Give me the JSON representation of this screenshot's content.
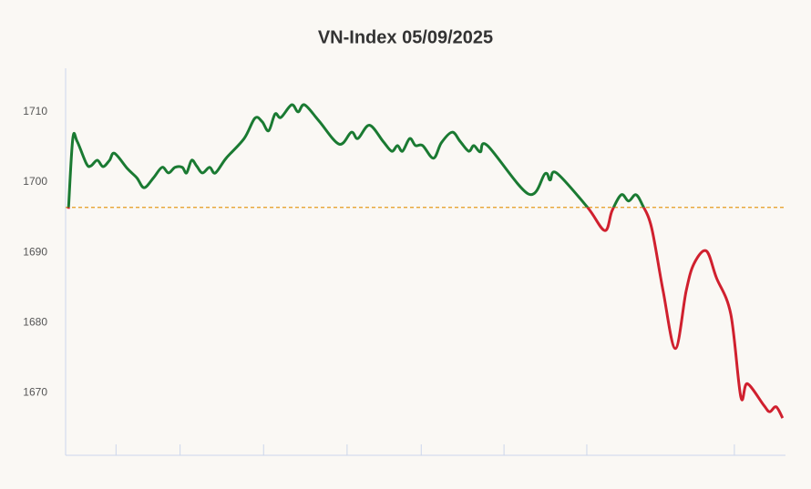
{
  "chart_data": {
    "type": "line",
    "title": "VN-Index 05/09/2025",
    "x": [
      0.4,
      1.0,
      1.6,
      2.9,
      3.5,
      4.4,
      5.2,
      6.1,
      6.8,
      8.6,
      9.9,
      10.9,
      12.2,
      13.4,
      14.3,
      15.2,
      16.2,
      16.8,
      17.5,
      18.2,
      19.0,
      20.0,
      20.8,
      22.3,
      24.8,
      26.3,
      27.3,
      28.2,
      29.1,
      29.9,
      31.4,
      32.3,
      33.2,
      35.2,
      38.0,
      39.7,
      40.6,
      42.2,
      44.1,
      45.3,
      46.1,
      46.8,
      47.8,
      48.6,
      49.6,
      51.1,
      52.2,
      53.7,
      54.8,
      56.0,
      56.7,
      57.6,
      58.6,
      64.3,
      66.6,
      67.3,
      68.2,
      72.5,
      74.9,
      75.9,
      77.2,
      78.2,
      79.2,
      80.1,
      81.4,
      83.0,
      84.7,
      86.2,
      87.3,
      89.0,
      90.4,
      92.4,
      93.8,
      94.7,
      97.0,
      97.8,
      98.7,
      99.6
    ],
    "values": [
      1696.2,
      1706.2,
      1705.8,
      1702.6,
      1702.3,
      1703.1,
      1702.2,
      1703.1,
      1704.1,
      1701.9,
      1700.6,
      1699.2,
      1700.6,
      1702.1,
      1701.3,
      1702.1,
      1702.1,
      1701.3,
      1703.1,
      1702.3,
      1701.3,
      1702.1,
      1701.3,
      1703.4,
      1706.2,
      1709.1,
      1708.6,
      1707.3,
      1709.7,
      1709.2,
      1711.0,
      1710.0,
      1711.0,
      1708.7,
      1705.4,
      1707.1,
      1706.2,
      1708.1,
      1705.8,
      1704.4,
      1705.2,
      1704.4,
      1706.2,
      1705.2,
      1705.2,
      1703.4,
      1705.6,
      1707.1,
      1705.8,
      1704.4,
      1705.2,
      1704.3,
      1705.2,
      1698.3,
      1701.2,
      1700.3,
      1701.3,
      1696.4,
      1693.1,
      1695.9,
      1698.2,
      1697.3,
      1698.2,
      1696.8,
      1693.5,
      1684.5,
      1676.3,
      1684.5,
      1688.4,
      1690.2,
      1686.4,
      1681.2,
      1669.4,
      1671.3,
      1668.2,
      1667.3,
      1668.0,
      1666.4
    ],
    "reference": 1696.4,
    "color_above": "#1a7a32",
    "color_below": "#d0202e",
    "reference_color": "#e69a1e",
    "xlim": [
      0,
      100
    ],
    "xticks": [
      7.0,
      15.9,
      27.5,
      39.1,
      49.4,
      60.9,
      72.4,
      92.9
    ],
    "ylim": [
      1661.1,
      1716.2
    ],
    "yticks": [
      1670,
      1680,
      1690,
      1700,
      1710
    ],
    "grid": false
  }
}
